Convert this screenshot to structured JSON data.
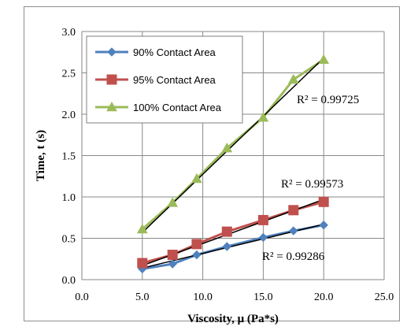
{
  "chart_data": {
    "type": "line",
    "xlabel": "Viscosity, μ (Pa*s)",
    "ylabel": "Time, t (s)",
    "xlim": [
      0,
      25
    ],
    "ylim": [
      0,
      3
    ],
    "x_ticks": [
      "0.0",
      "5.0",
      "10.0",
      "15.0",
      "20.0",
      "25.0"
    ],
    "y_ticks": [
      "0.0",
      "0.5",
      "1.0",
      "1.5",
      "2.0",
      "2.5",
      "3.0"
    ],
    "grid": "horizontal and vertical major gridlines",
    "legend_position": "top-left inside plot",
    "x": [
      5,
      7.5,
      9.5,
      12,
      15,
      17.5,
      20
    ],
    "series": [
      {
        "name": "90% Contact Area",
        "color": "#4f81bd",
        "marker": "diamond",
        "values": [
          0.13,
          0.19,
          0.3,
          0.4,
          0.51,
          0.59,
          0.66
        ],
        "trendline_color": "#000000",
        "trendline_endpoints": [
          [
            5,
            0.14
          ],
          [
            20,
            0.67
          ]
        ],
        "r2_label": "R² = 0.99286"
      },
      {
        "name": "95% Contact Area",
        "color": "#c0504d",
        "marker": "square",
        "values": [
          0.2,
          0.3,
          0.43,
          0.58,
          0.72,
          0.84,
          0.94
        ],
        "trendline_color": "#000000",
        "trendline_endpoints": [
          [
            5,
            0.17
          ],
          [
            20,
            0.97
          ]
        ],
        "r2_label": "R² = 0.99573"
      },
      {
        "name": "100% Contact Area",
        "color": "#9bbb59",
        "marker": "triangle",
        "values": [
          0.61,
          0.93,
          1.22,
          1.59,
          1.96,
          2.42,
          2.66
        ],
        "trendline_color": "#000000",
        "trendline_endpoints": [
          [
            5,
            0.57
          ],
          [
            20,
            2.68
          ]
        ],
        "r2_label": "R² = 0.99725"
      }
    ]
  }
}
